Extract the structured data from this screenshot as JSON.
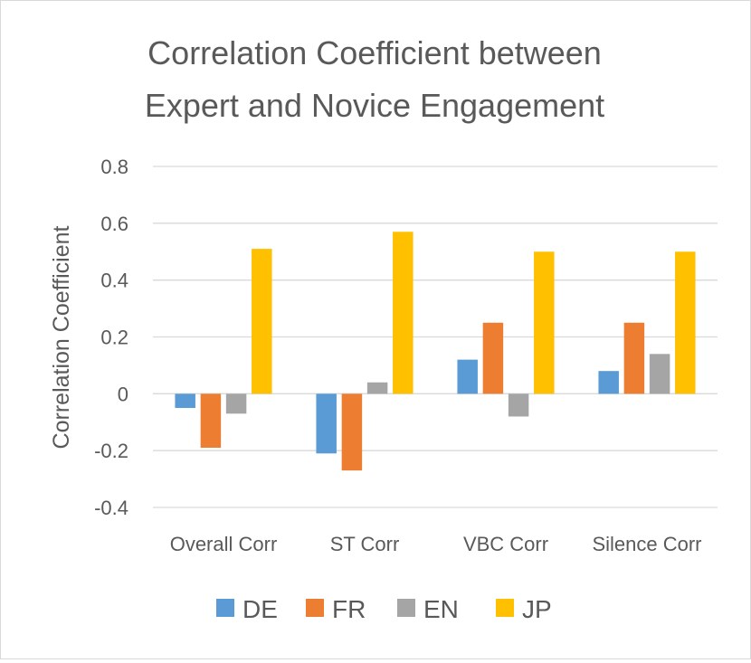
{
  "chart_data": {
    "type": "bar",
    "title_lines": [
      "Correlation Coefficient between",
      "Expert and Novice Engagement"
    ],
    "xlabel": "",
    "ylabel": "Correlation Coefficient",
    "ylim": [
      -0.4,
      0.8
    ],
    "yticks": [
      -0.4,
      -0.2,
      0,
      0.2,
      0.4,
      0.6,
      0.8
    ],
    "ytick_labels": [
      "-0.4",
      "-0.2",
      "0",
      "0.2",
      "0.4",
      "0.6",
      "0.8"
    ],
    "grid": true,
    "legend_position": "bottom",
    "categories": [
      "Overall Corr",
      "ST Corr",
      "VBC Corr",
      "Silence Corr"
    ],
    "series": [
      {
        "name": "DE",
        "color": "#5b9bd5",
        "values": [
          -0.05,
          -0.21,
          0.12,
          0.08
        ]
      },
      {
        "name": "FR",
        "color": "#ed7d31",
        "values": [
          -0.19,
          -0.27,
          0.25,
          0.25
        ]
      },
      {
        "name": "EN",
        "color": "#a5a5a5",
        "values": [
          -0.07,
          0.04,
          -0.08,
          0.14
        ]
      },
      {
        "name": "JP",
        "color": "#ffc000",
        "values": [
          0.51,
          0.57,
          0.5,
          0.5
        ]
      }
    ]
  }
}
